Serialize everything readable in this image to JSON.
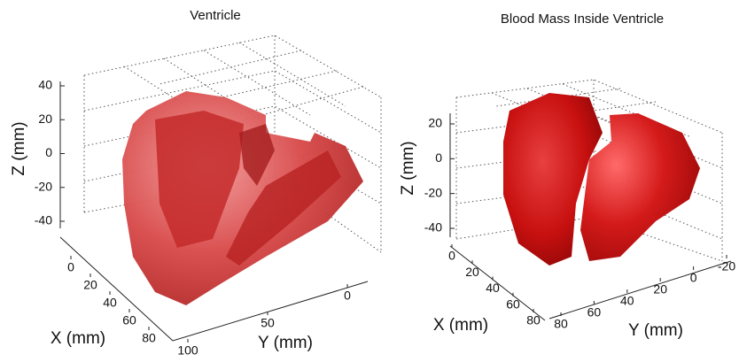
{
  "chart_data": [
    {
      "type": "surface3d",
      "title": "Ventricle",
      "xlabel": "X (mm)",
      "ylabel": "Y (mm)",
      "zlabel": "Z (mm)",
      "xticks": [
        0,
        20,
        40,
        60,
        80
      ],
      "yticks": [
        100,
        50,
        0
      ],
      "zticks": [
        40,
        20,
        0,
        -20,
        -40
      ]
    },
    {
      "type": "surface3d",
      "title": "Blood Mass Inside Ventricle",
      "xlabel": "X (mm)",
      "ylabel": "Y (mm)",
      "zlabel": "Z (mm)",
      "xticks": [
        0,
        20,
        40,
        60,
        80
      ],
      "yticks": [
        80,
        60,
        40,
        20,
        0,
        -20
      ],
      "zticks": [
        20,
        0,
        -20,
        -40
      ]
    }
  ]
}
